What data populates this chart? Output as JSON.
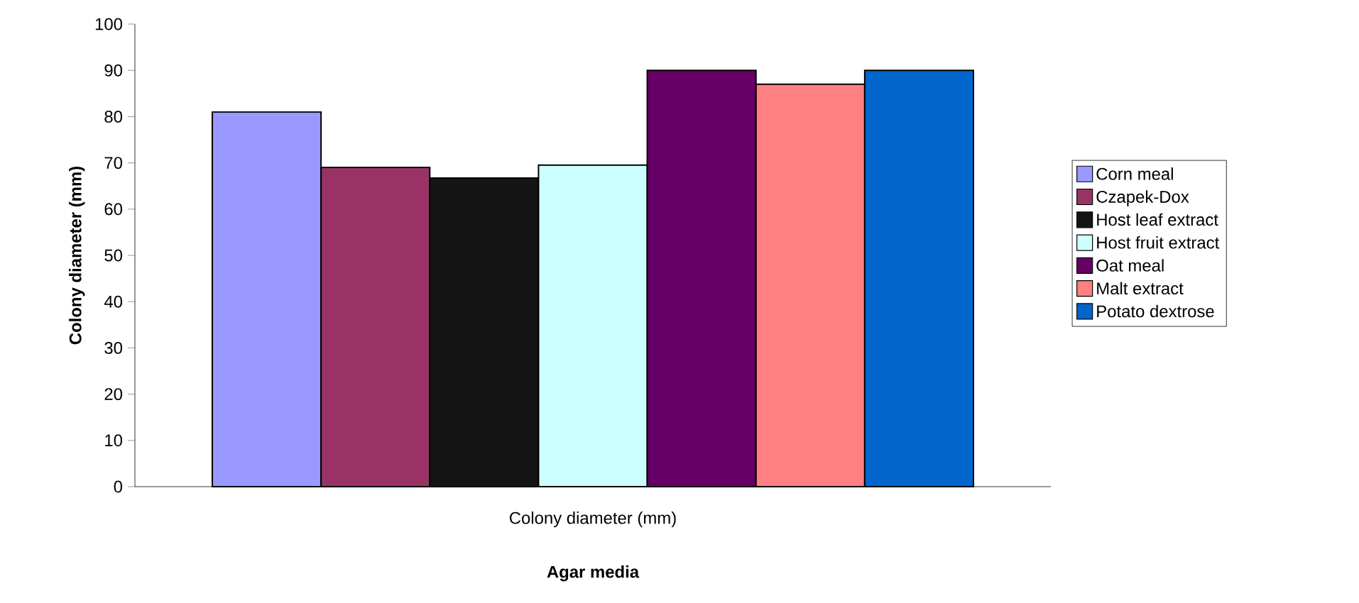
{
  "chart_data": {
    "type": "bar",
    "xlabel": "Agar media",
    "ylabel": "Colony diameter (mm)",
    "categories": [
      null,
      null,
      null,
      null,
      null,
      null,
      null
    ],
    "series": [
      {
        "name": "Corn meal",
        "color": "#9999ff",
        "values": [
          81,
          null,
          null,
          null,
          null,
          null,
          null
        ]
      },
      {
        "name": "Czapek-Dox",
        "color": "#993366",
        "values": [
          null,
          69,
          null,
          null,
          null,
          null,
          null
        ]
      },
      {
        "name": "Host leaf extract",
        "color": "#141414",
        "values": [
          null,
          null,
          66.7,
          null,
          null,
          null,
          null
        ]
      },
      {
        "name": "Host fruit extract",
        "color": "#ccffff",
        "values": [
          null,
          null,
          null,
          69.5,
          null,
          null,
          null
        ]
      },
      {
        "name": "Oat meal",
        "color": "#660066",
        "values": [
          null,
          null,
          null,
          null,
          90,
          null,
          null
        ]
      },
      {
        "name": "Malt extract",
        "color": "#ff8080",
        "values": [
          null,
          null,
          null,
          null,
          null,
          87,
          null
        ]
      },
      {
        "name": "Potato dextrose",
        "color": "#0066cc",
        "values": [
          null,
          null,
          null,
          null,
          null,
          null,
          90
        ]
      }
    ],
    "annotations": [
      "Colony diameter (mm)"
    ],
    "ylim": [
      0,
      100
    ],
    "yticks": [
      0,
      10,
      20,
      30,
      40,
      50,
      60,
      70,
      80,
      90,
      100
    ],
    "grid": false,
    "legend": "right"
  }
}
